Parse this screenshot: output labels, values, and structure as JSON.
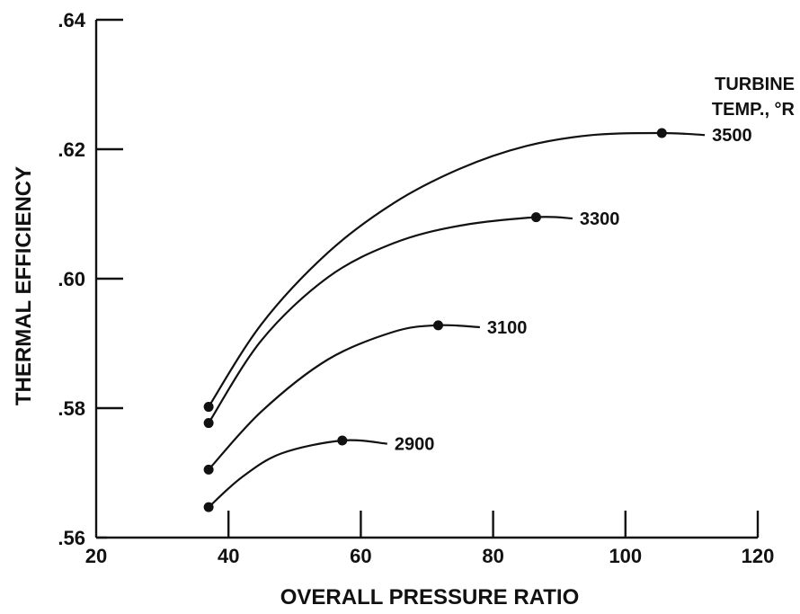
{
  "chart_data": {
    "type": "line",
    "title": "",
    "xlabel": "OVERALL PRESSURE RATIO",
    "ylabel": "THERMAL EFFICIENCY",
    "xlim": [
      20,
      120
    ],
    "ylim": [
      0.56,
      0.64
    ],
    "x_ticks": [
      "20",
      "40",
      "60",
      "80",
      "100",
      "120"
    ],
    "y_ticks": [
      ".56",
      ".58",
      ".60",
      ".62",
      ".64"
    ],
    "grid": false,
    "legend_title": [
      "TURBINE",
      "TEMP., °R"
    ],
    "series": [
      {
        "name": "3500",
        "points": [
          [
            37,
            0.5802
          ],
          [
            45,
            0.593
          ],
          [
            55,
            0.604
          ],
          [
            65,
            0.6117
          ],
          [
            75,
            0.617
          ],
          [
            85,
            0.6205
          ],
          [
            95,
            0.6222
          ],
          [
            105.5,
            0.6225
          ],
          [
            112,
            0.6222
          ]
        ],
        "marked": [
          [
            37,
            0.5802
          ],
          [
            105.5,
            0.6225
          ]
        ]
      },
      {
        "name": "3300",
        "points": [
          [
            37,
            0.5777
          ],
          [
            45,
            0.5905
          ],
          [
            55,
            0.6002
          ],
          [
            65,
            0.6055
          ],
          [
            75,
            0.6082
          ],
          [
            86.5,
            0.6095
          ],
          [
            92,
            0.6093
          ]
        ],
        "marked": [
          [
            37,
            0.5777
          ],
          [
            86.5,
            0.6095
          ]
        ]
      },
      {
        "name": "3100",
        "points": [
          [
            37,
            0.5705
          ],
          [
            45,
            0.5795
          ],
          [
            55,
            0.5875
          ],
          [
            65,
            0.5918
          ],
          [
            71.7,
            0.5928
          ],
          [
            78,
            0.5925
          ]
        ],
        "marked": [
          [
            37,
            0.5705
          ],
          [
            71.7,
            0.5928
          ]
        ]
      },
      {
        "name": "2900",
        "points": [
          [
            37,
            0.5647
          ],
          [
            42,
            0.5693
          ],
          [
            48,
            0.573
          ],
          [
            57.2,
            0.575
          ],
          [
            64,
            0.5745
          ]
        ],
        "marked": [
          [
            37,
            0.5647
          ],
          [
            57.2,
            0.575
          ]
        ]
      }
    ]
  }
}
